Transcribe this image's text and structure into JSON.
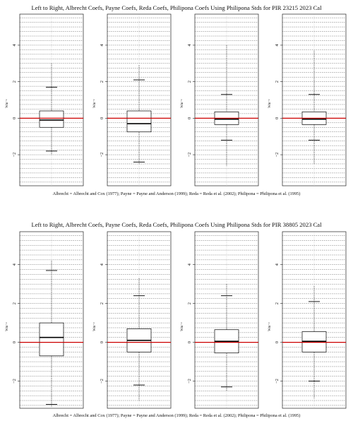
{
  "titles": [
    "Left to Right, Albrecht Coefs, Payne Coefs, Reda Coefs, Philipona Coefs Using Philipona Stds for PIR 23215 2023 Cal",
    "Left to Right, Albrecht Coefs, Payne Coefs, Reda Coefs, Philipona Coefs Using Philipona Stds for PIR 38805 2023 Cal"
  ],
  "captions": [
    "Albrecht = Albrecht and Cox (1977); Payne = Payne and Anderson (1999); Reda = Reda et al. (2002); Philipona = Philipona et al. (1995)",
    "Albrecht = Albrecht and Cox (1977); Payne = Payne and Anderson (1999); Reda = Reda et al. (2002); Philipona = Philipona et al. (1995)"
  ],
  "colors": {
    "reference_line": "#cc0000",
    "grid": "#555555",
    "box": "#000000"
  },
  "chart_data": [
    {
      "type": "box",
      "title": "Left to Right, Albrecht Coefs, Payne Coefs, Reda Coefs, Philipona Coefs Using Philipona Stds for PIR 23215 2023 Cal",
      "ylabel": "Wm-2",
      "ylim": [
        -3.7,
        5.7
      ],
      "yticks": [
        -2,
        0,
        2,
        4
      ],
      "reference_line": 0,
      "grid": true,
      "boxes": [
        {
          "name": "Albrecht",
          "whisker_low": -1.8,
          "q1": -0.5,
          "median": -0.1,
          "q3": 0.4,
          "whisker_high": 1.7,
          "whisker_high_extent": 3.0,
          "whisker_low_extent": -2.0
        },
        {
          "name": "Payne",
          "whisker_low": -2.4,
          "q1": -0.75,
          "median": -0.3,
          "q3": 0.4,
          "whisker_high": 2.1,
          "whisker_high_extent": 2.9,
          "whisker_low_extent": -2.5
        },
        {
          "name": "Reda",
          "whisker_low": -1.2,
          "q1": -0.35,
          "median": -0.05,
          "q3": 0.35,
          "whisker_high": 1.3,
          "whisker_high_extent": 4.0,
          "whisker_low_extent": -2.6
        },
        {
          "name": "Philipona",
          "whisker_low": -1.2,
          "q1": -0.35,
          "median": -0.05,
          "q3": 0.35,
          "whisker_high": 1.3,
          "whisker_high_extent": 3.7,
          "whisker_low_extent": -2.5
        }
      ]
    },
    {
      "type": "box",
      "title": "Left to Right, Albrecht Coefs, Payne Coefs, Reda Coefs, Philipona Coefs Using Philipona Stds for PIR 38805 2023 Cal",
      "ylabel": "Wm-2",
      "ylim": [
        -3.4,
        5.7
      ],
      "yticks": [
        -2,
        0,
        2,
        4
      ],
      "reference_line": 0,
      "grid": true,
      "boxes": [
        {
          "name": "Albrecht",
          "whisker_low": -3.2,
          "q1": -0.7,
          "median": 0.25,
          "q3": 1.0,
          "whisker_high": 3.7,
          "whisker_high_extent": 4.2,
          "whisker_low_extent": -3.3
        },
        {
          "name": "Payne",
          "whisker_low": -2.2,
          "q1": -0.5,
          "median": 0.1,
          "q3": 0.7,
          "whisker_high": 2.4,
          "whisker_high_extent": 3.3,
          "whisker_low_extent": -3.0
        },
        {
          "name": "Reda",
          "whisker_low": -2.3,
          "q1": -0.55,
          "median": 0.05,
          "q3": 0.65,
          "whisker_high": 2.4,
          "whisker_high_extent": 3.0,
          "whisker_low_extent": -2.5
        },
        {
          "name": "Philipona",
          "whisker_low": -2.0,
          "q1": -0.5,
          "median": 0.05,
          "q3": 0.55,
          "whisker_high": 2.1,
          "whisker_high_extent": 2.9,
          "whisker_low_extent": -2.9
        }
      ]
    }
  ]
}
